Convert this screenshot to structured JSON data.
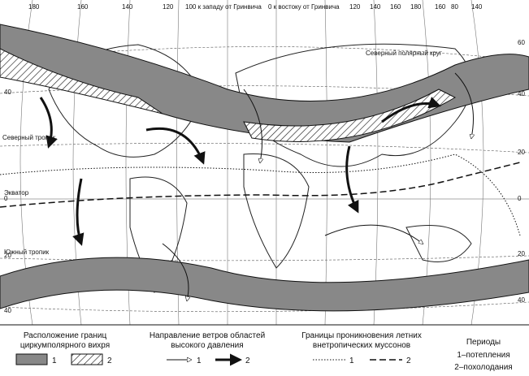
{
  "scale_top": [
    {
      "text": "180"
    },
    {
      "text": "160"
    },
    {
      "text": "140"
    },
    {
      "text": "120"
    },
    {
      "text": "100 к западу от Гринвича"
    },
    {
      "text": "0 к востоку от Гринвича"
    },
    {
      "text": "120"
    },
    {
      "text": "140"
    },
    {
      "text": "160"
    },
    {
      "text": "180"
    },
    {
      "text": "160"
    },
    {
      "text": "80"
    },
    {
      "text": "140"
    }
  ],
  "lat_left": [
    "40",
    "0",
    "20",
    "40"
  ],
  "lat_right": [
    "60",
    "40",
    "20",
    "0",
    "20",
    "40"
  ],
  "lines": {
    "arctic": "Северный полярный круг",
    "tropic_n": "Северный тропик",
    "equator": "Экватор",
    "tropic_s": "Южный тропик"
  },
  "legend": {
    "vortex": {
      "title": "Расположение границ циркумполярного вихря",
      "item1": "1",
      "item2": "2"
    },
    "winds": {
      "title": "Направление ветров областей высокого давления",
      "item1": "1",
      "item2": "2"
    },
    "monsoons": {
      "title": "Границы проникновения летних внетропических муссонов",
      "item1": "1",
      "item2": "2"
    },
    "periods": {
      "title": "Периоды",
      "item1": "1–потепления",
      "item2": "2–похолодания"
    }
  }
}
